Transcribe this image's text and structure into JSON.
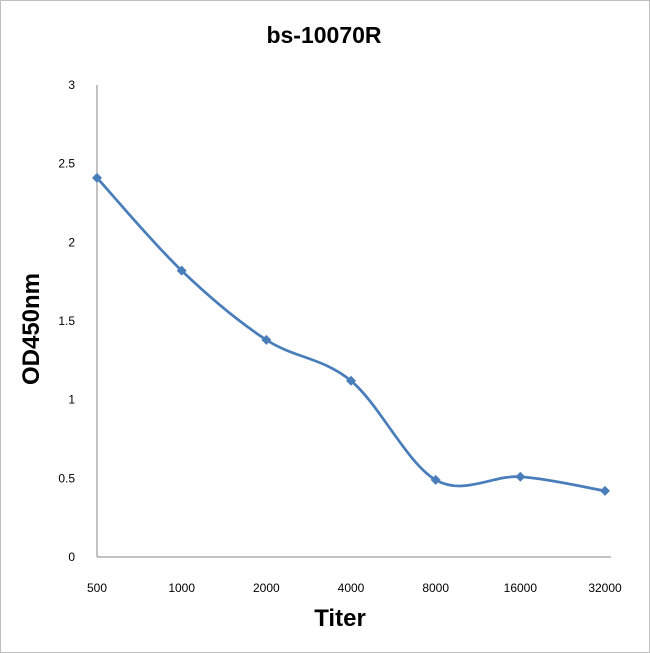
{
  "chart_data": {
    "type": "line",
    "title": "bs-10070R",
    "xlabel": "Titer",
    "ylabel": "OD450nm",
    "categories": [
      "500",
      "1000",
      "2000",
      "4000",
      "8000",
      "16000",
      "32000"
    ],
    "series": [
      {
        "values": [
          2.41,
          1.82,
          1.38,
          1.12,
          0.49,
          0.51,
          0.42
        ]
      }
    ],
    "yticks": [
      "0",
      "0.5",
      "1",
      "1.5",
      "2",
      "2.5",
      "3"
    ],
    "ylim": [
      0,
      3
    ],
    "smooth": true,
    "grid": false,
    "legend": "none",
    "color": "#4a7ebb"
  }
}
